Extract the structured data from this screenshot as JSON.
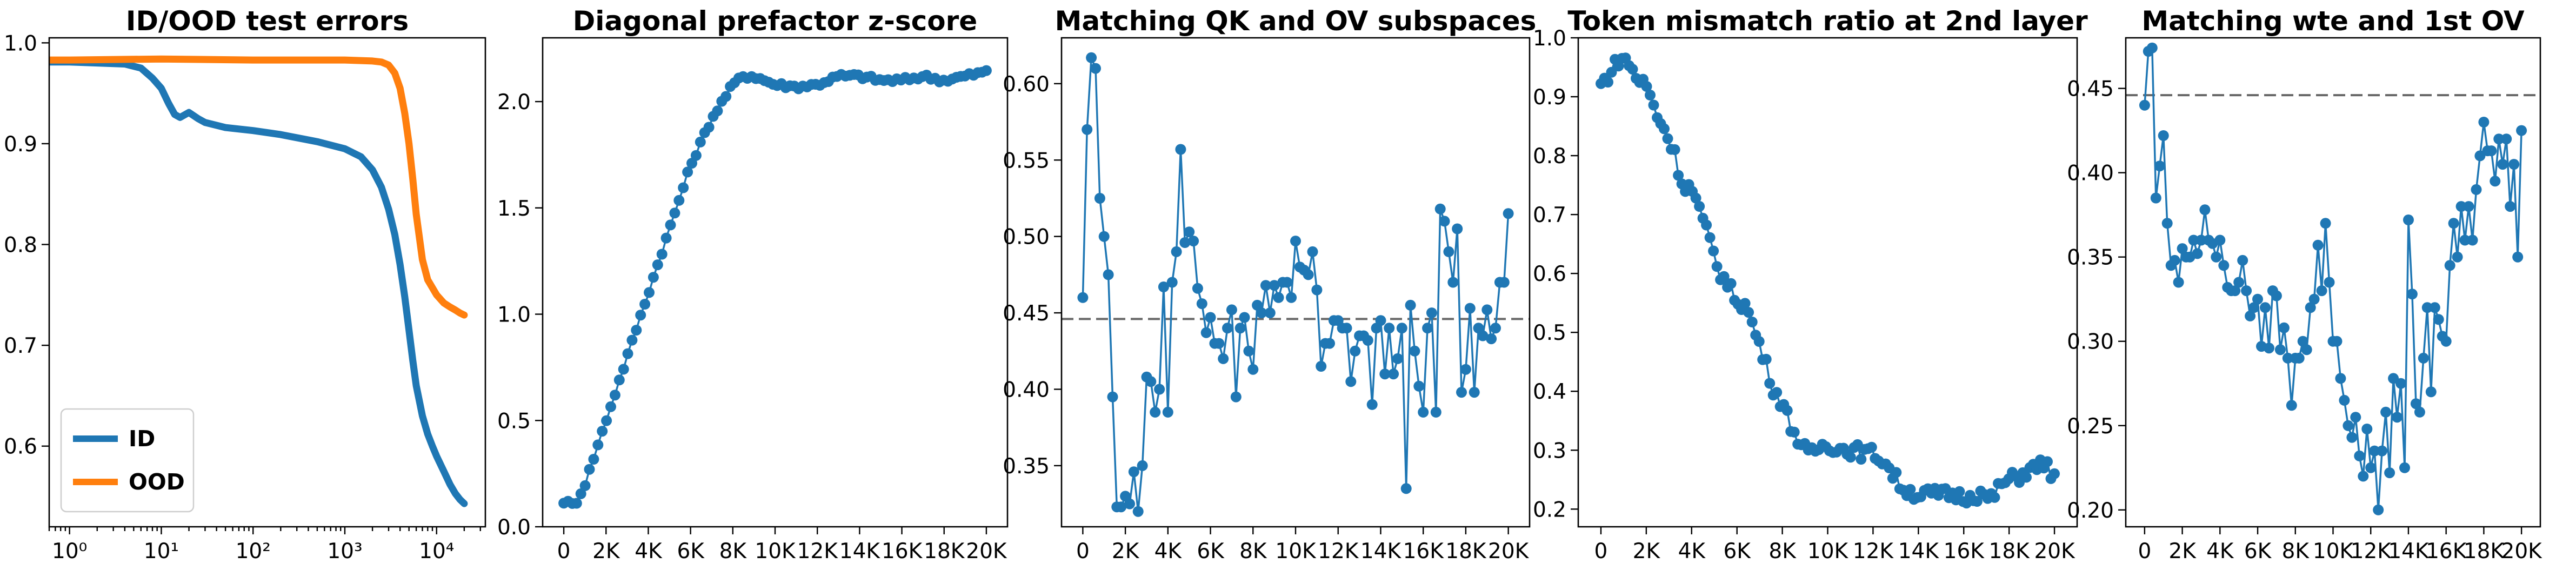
{
  "colors": {
    "blue": "#1f77b4",
    "orange": "#ff7f0e",
    "reference": "#666666"
  },
  "chart_data": [
    {
      "type": "line",
      "title": "ID/OOD test errors",
      "xscale": "log",
      "xlim": [
        0.6,
        34000
      ],
      "ylim": [
        0.52,
        1.005
      ],
      "xticks": [
        1,
        10,
        100,
        1000,
        10000
      ],
      "xtick_labels": [
        "10⁰",
        "10¹",
        "10²",
        "10³",
        "10⁴"
      ],
      "yticks": [
        0.6,
        0.7,
        0.8,
        0.9,
        1.0
      ],
      "ytick_labels": [
        "0.6",
        "0.7",
        "0.8",
        "0.9",
        "1.0"
      ],
      "legend": "lower-left",
      "series": [
        {
          "name": "ID",
          "color": "#1f77b4",
          "x": [
            0.6,
            1,
            2,
            4,
            6,
            8,
            10,
            12,
            14,
            16,
            20,
            25,
            30,
            50,
            100,
            200,
            500,
            1000,
            1500,
            2000,
            2500,
            3000,
            3500,
            4000,
            4500,
            5000,
            5500,
            6000,
            7000,
            8000,
            9000,
            10000,
            12000,
            14000,
            16000,
            18000,
            20000
          ],
          "y": [
            0.981,
            0.981,
            0.98,
            0.979,
            0.975,
            0.965,
            0.955,
            0.94,
            0.929,
            0.926,
            0.931,
            0.925,
            0.921,
            0.916,
            0.913,
            0.909,
            0.902,
            0.895,
            0.887,
            0.874,
            0.857,
            0.835,
            0.81,
            0.78,
            0.748,
            0.715,
            0.685,
            0.66,
            0.63,
            0.612,
            0.6,
            0.59,
            0.575,
            0.562,
            0.553,
            0.547,
            0.543
          ]
        },
        {
          "name": "OOD",
          "color": "#ff7f0e",
          "x": [
            0.6,
            1,
            10,
            100,
            1000,
            2000,
            2500,
            3000,
            3500,
            4000,
            4500,
            5000,
            5500,
            6000,
            7000,
            8000,
            10000,
            12000,
            14000,
            16000,
            18000,
            20000
          ],
          "y": [
            0.983,
            0.983,
            0.984,
            0.983,
            0.983,
            0.982,
            0.981,
            0.978,
            0.97,
            0.955,
            0.93,
            0.9,
            0.865,
            0.83,
            0.785,
            0.765,
            0.75,
            0.742,
            0.738,
            0.735,
            0.732,
            0.73
          ]
        }
      ]
    },
    {
      "type": "line",
      "title": "Diagonal prefactor z-score",
      "xlim": [
        -1000,
        21000
      ],
      "ylim": [
        0,
        2.3
      ],
      "xticks": [
        0,
        2000,
        4000,
        6000,
        8000,
        10000,
        12000,
        14000,
        16000,
        18000,
        20000
      ],
      "xtick_labels": [
        "0",
        "2K",
        "4K",
        "6K",
        "8K",
        "10K",
        "12K",
        "14K",
        "16K",
        "18K",
        "20K"
      ],
      "yticks": [
        0,
        0.5,
        1.0,
        1.5,
        2.0
      ],
      "ytick_labels": [
        "0.0",
        "0.5",
        "1.0",
        "1.5",
        "2.0"
      ],
      "markers": true,
      "series": [
        {
          "color": "#1f77b4",
          "anchors_x": [
            0,
            500,
            1000,
            2000,
            4000,
            6000,
            7000,
            7500,
            8000,
            8500,
            9000,
            10000,
            11000,
            12000,
            13000,
            14000,
            15000,
            16000,
            17000,
            18000,
            19000,
            20000
          ],
          "anchors_y": [
            0.12,
            0.1,
            0.2,
            0.5,
            1.1,
            1.7,
            1.92,
            2.0,
            2.08,
            2.12,
            2.12,
            2.08,
            2.07,
            2.08,
            2.12,
            2.12,
            2.1,
            2.1,
            2.12,
            2.1,
            2.12,
            2.14
          ],
          "points": 100,
          "jitter": 0.012
        }
      ]
    },
    {
      "type": "line",
      "title": "Matching QK and OV subspaces",
      "xlim": [
        -1000,
        21000
      ],
      "ylim": [
        0.31,
        0.63
      ],
      "xticks": [
        0,
        2000,
        4000,
        6000,
        8000,
        10000,
        12000,
        14000,
        16000,
        18000,
        20000
      ],
      "xtick_labels": [
        "0",
        "2K",
        "4K",
        "6K",
        "8K",
        "10K",
        "12K",
        "14K",
        "16K",
        "18K",
        "20K"
      ],
      "yticks": [
        0.35,
        0.4,
        0.45,
        0.5,
        0.55,
        0.6
      ],
      "ytick_labels": [
        "0.35",
        "0.40",
        "0.45",
        "0.50",
        "0.55",
        "0.60"
      ],
      "markers": true,
      "reference_line": 0.446,
      "series": [
        {
          "color": "#1f77b4",
          "x": [
            0,
            200,
            400,
            600,
            800,
            1000,
            1200,
            1400,
            1600,
            1800,
            2000,
            2200,
            2400,
            2600,
            2800,
            3000,
            3200,
            3400,
            3600,
            3800,
            4000,
            4200,
            4400,
            4600,
            4800,
            5000,
            5200,
            5400,
            5600,
            5800,
            6000,
            6200,
            6400,
            6600,
            6800,
            7000,
            7200,
            7400,
            7600,
            7800,
            8000,
            8200,
            8400,
            8600,
            8800,
            9000,
            9200,
            9400,
            9600,
            9800,
            10000,
            10200,
            10400,
            10600,
            10800,
            11000,
            11200,
            11400,
            11600,
            11800,
            12000,
            12200,
            12400,
            12600,
            12800,
            13000,
            13200,
            13400,
            13600,
            13800,
            14000,
            14200,
            14400,
            14600,
            14800,
            15000,
            15200,
            15400,
            15600,
            15800,
            16000,
            16200,
            16400,
            16600,
            16800,
            17000,
            17200,
            17400,
            17600,
            17800,
            18000,
            18200,
            18400,
            18600,
            18800,
            19000,
            19200,
            19400,
            19600,
            19800,
            20000
          ],
          "y": [
            0.46,
            0.57,
            0.617,
            0.61,
            0.525,
            0.5,
            0.475,
            0.395,
            0.323,
            0.323,
            0.33,
            0.325,
            0.346,
            0.32,
            0.35,
            0.408,
            0.405,
            0.385,
            0.4,
            0.467,
            0.385,
            0.47,
            0.49,
            0.557,
            0.496,
            0.503,
            0.497,
            0.466,
            0.456,
            0.437,
            0.447,
            0.43,
            0.43,
            0.42,
            0.44,
            0.452,
            0.395,
            0.44,
            0.447,
            0.425,
            0.413,
            0.455,
            0.45,
            0.468,
            0.45,
            0.468,
            0.46,
            0.47,
            0.47,
            0.46,
            0.497,
            0.48,
            0.478,
            0.475,
            0.49,
            0.465,
            0.415,
            0.43,
            0.43,
            0.445,
            0.445,
            0.44,
            0.44,
            0.405,
            0.425,
            0.435,
            0.435,
            0.432,
            0.39,
            0.44,
            0.445,
            0.41,
            0.44,
            0.41,
            0.42,
            0.44,
            0.335,
            0.455,
            0.425,
            0.402,
            0.385,
            0.44,
            0.45,
            0.385,
            0.518,
            0.51,
            0.49,
            0.47,
            0.505,
            0.398,
            0.413,
            0.453,
            0.398,
            0.44,
            0.435,
            0.452,
            0.433,
            0.44,
            0.47,
            0.47,
            0.515
          ]
        }
      ]
    },
    {
      "type": "line",
      "title": "Token mismatch ratio at 2nd layer",
      "xlim": [
        -1000,
        21000
      ],
      "ylim": [
        0.17,
        1.0
      ],
      "xticks": [
        0,
        2000,
        4000,
        6000,
        8000,
        10000,
        12000,
        14000,
        16000,
        18000,
        20000
      ],
      "xtick_labels": [
        "0",
        "2K",
        "4K",
        "6K",
        "8K",
        "10K",
        "12K",
        "14K",
        "16K",
        "18K",
        "20K"
      ],
      "yticks": [
        0.2,
        0.3,
        0.4,
        0.5,
        0.6,
        0.7,
        0.8,
        0.9,
        1.0
      ],
      "ytick_labels": [
        "0.2",
        "0.3",
        "0.4",
        "0.5",
        "0.6",
        "0.7",
        "0.8",
        "0.9",
        "1.0"
      ],
      "markers": true,
      "series": [
        {
          "color": "#1f77b4",
          "anchors_x": [
            0,
            400,
            800,
            1200,
            1600,
            2000,
            2400,
            2800,
            3200,
            3600,
            4000,
            4400,
            4800,
            5200,
            5600,
            6000,
            6400,
            6800,
            7200,
            7600,
            8000,
            8400,
            8800,
            9200,
            9600,
            10000,
            10400,
            10800,
            11200,
            11600,
            12000,
            12400,
            12800,
            13200,
            13600,
            14000,
            14400,
            14800,
            15200,
            15600,
            16000,
            16400,
            16800,
            17200,
            17600,
            18000,
            18400,
            18800,
            19200,
            19600,
            20000
          ],
          "anchors_y": [
            0.92,
            0.94,
            0.965,
            0.96,
            0.93,
            0.92,
            0.875,
            0.845,
            0.81,
            0.75,
            0.745,
            0.7,
            0.655,
            0.605,
            0.58,
            0.555,
            0.545,
            0.5,
            0.455,
            0.405,
            0.38,
            0.34,
            0.31,
            0.29,
            0.305,
            0.31,
            0.305,
            0.3,
            0.3,
            0.295,
            0.295,
            0.285,
            0.265,
            0.24,
            0.23,
            0.225,
            0.225,
            0.225,
            0.225,
            0.225,
            0.22,
            0.225,
            0.225,
            0.215,
            0.24,
            0.25,
            0.255,
            0.265,
            0.27,
            0.28,
            0.25
          ],
          "points": 130,
          "jitter": 0.012
        }
      ]
    },
    {
      "type": "line",
      "title": "Matching wte and 1st OV",
      "xlim": [
        -1000,
        21000
      ],
      "ylim": [
        0.19,
        0.48
      ],
      "xticks": [
        0,
        2000,
        4000,
        6000,
        8000,
        10000,
        12000,
        14000,
        16000,
        18000,
        20000
      ],
      "xtick_labels": [
        "0",
        "2K",
        "4K",
        "6K",
        "8K",
        "10K",
        "12K",
        "14K",
        "16K",
        "18K",
        "20K"
      ],
      "yticks": [
        0.2,
        0.25,
        0.3,
        0.35,
        0.4,
        0.45
      ],
      "ytick_labels": [
        "0.20",
        "0.25",
        "0.30",
        "0.35",
        "0.40",
        "0.45"
      ],
      "markers": true,
      "reference_line": 0.446,
      "series": [
        {
          "color": "#1f77b4",
          "x": [
            0,
            200,
            400,
            600,
            800,
            1000,
            1200,
            1400,
            1600,
            1800,
            2000,
            2200,
            2400,
            2600,
            2800,
            3000,
            3200,
            3400,
            3600,
            3800,
            4000,
            4200,
            4400,
            4600,
            4800,
            5000,
            5200,
            5400,
            5600,
            5800,
            6000,
            6200,
            6400,
            6600,
            6800,
            7000,
            7200,
            7400,
            7600,
            7800,
            8000,
            8200,
            8400,
            8600,
            8800,
            9000,
            9200,
            9400,
            9600,
            9800,
            10000,
            10200,
            10400,
            10600,
            10800,
            11000,
            11200,
            11400,
            11600,
            11800,
            12000,
            12200,
            12400,
            12600,
            12800,
            13000,
            13200,
            13400,
            13600,
            13800,
            14000,
            14200,
            14400,
            14600,
            14800,
            15000,
            15200,
            15400,
            15600,
            15800,
            16000,
            16200,
            16400,
            16600,
            16800,
            17000,
            17200,
            17400,
            17600,
            17800,
            18000,
            18200,
            18400,
            18600,
            18800,
            19000,
            19200,
            19400,
            19600,
            19800,
            20000
          ],
          "y": [
            0.44,
            0.472,
            0.474,
            0.385,
            0.404,
            0.422,
            0.37,
            0.345,
            0.348,
            0.335,
            0.355,
            0.35,
            0.35,
            0.36,
            0.352,
            0.36,
            0.378,
            0.36,
            0.358,
            0.35,
            0.36,
            0.345,
            0.332,
            0.33,
            0.33,
            0.335,
            0.348,
            0.33,
            0.315,
            0.32,
            0.325,
            0.297,
            0.32,
            0.296,
            0.33,
            0.327,
            0.295,
            0.308,
            0.29,
            0.262,
            0.29,
            0.29,
            0.3,
            0.295,
            0.32,
            0.325,
            0.357,
            0.33,
            0.37,
            0.335,
            0.3,
            0.3,
            0.278,
            0.265,
            0.25,
            0.243,
            0.255,
            0.232,
            0.22,
            0.248,
            0.225,
            0.235,
            0.2,
            0.235,
            0.258,
            0.222,
            0.278,
            0.255,
            0.275,
            0.225,
            0.372,
            0.328,
            0.263,
            0.258,
            0.29,
            0.32,
            0.27,
            0.32,
            0.313,
            0.303,
            0.3,
            0.345,
            0.37,
            0.35,
            0.38,
            0.36,
            0.38,
            0.36,
            0.39,
            0.41,
            0.43,
            0.413,
            0.413,
            0.395,
            0.42,
            0.405,
            0.42,
            0.38,
            0.405,
            0.35,
            0.425
          ]
        }
      ]
    }
  ]
}
